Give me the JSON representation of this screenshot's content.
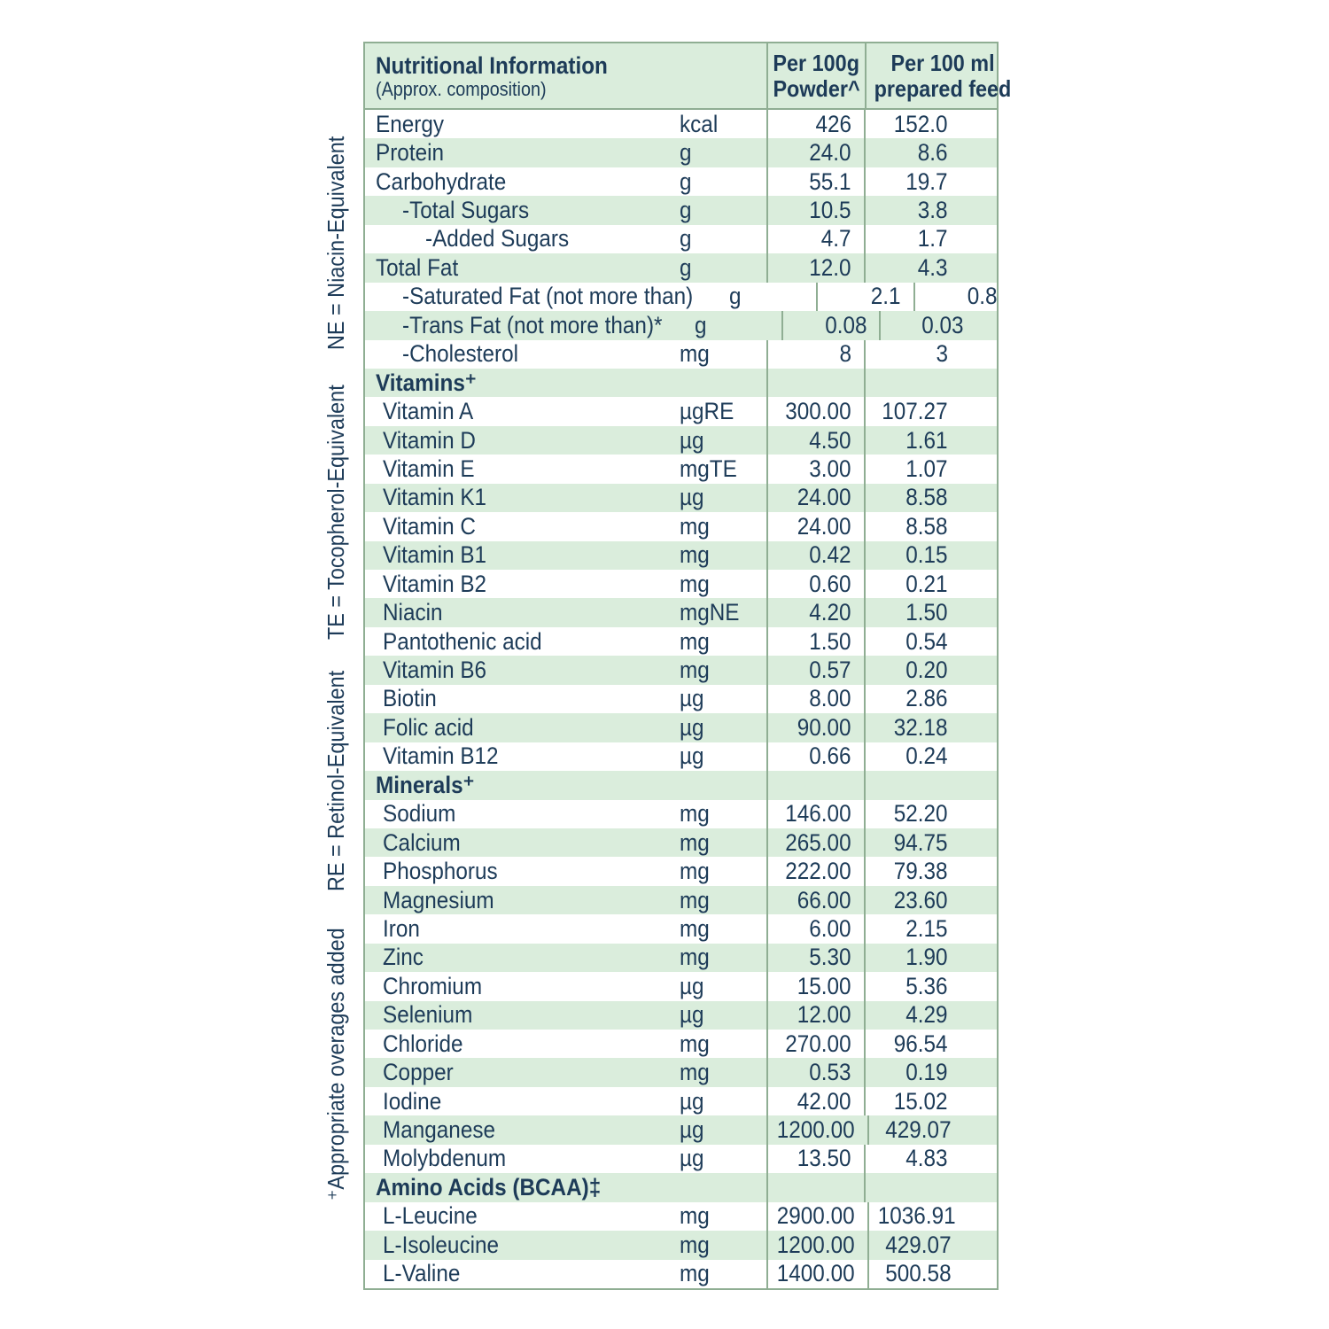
{
  "colors": {
    "text_navy": "#1d3b58",
    "row_green": "#daeddc",
    "border_green": "#8fae93",
    "background": "#ffffff"
  },
  "side_notes": {
    "items": [
      "⁺Appropriate overages added",
      "RE = Retinol-Equivalent",
      "TE = Tocopherol-Equivalent",
      "NE = Niacin-Equivalent"
    ]
  },
  "table": {
    "header": {
      "title": "Nutritional Information",
      "subtitle": "(Approx. composition)",
      "col_powder_line1": "Per 100g",
      "col_powder_line2": "Powder^",
      "col_feed_line1": "Per 100 ml",
      "col_feed_line2": "prepared feed"
    },
    "rows": [
      {
        "name": "Energy",
        "unit": "kcal",
        "per_100g": "426",
        "per_100ml": "152.0",
        "indent": 0
      },
      {
        "name": "Protein",
        "unit": "g",
        "per_100g": "24.0",
        "per_100ml": "8.6",
        "indent": 0
      },
      {
        "name": "Carbohydrate",
        "unit": "g",
        "per_100g": "55.1",
        "per_100ml": "19.7",
        "indent": 0
      },
      {
        "name": "-Total Sugars",
        "unit": "g",
        "per_100g": "10.5",
        "per_100ml": "3.8",
        "indent": 2
      },
      {
        "name": "-Added Sugars",
        "unit": "g",
        "per_100g": "4.7",
        "per_100ml": "1.7",
        "indent": 3
      },
      {
        "name": "Total Fat",
        "unit": "g",
        "per_100g": "12.0",
        "per_100ml": "4.3",
        "indent": 0
      },
      {
        "name": "-Saturated Fat (not more than)",
        "unit": "g",
        "per_100g": "2.1",
        "per_100ml": "0.8",
        "indent": 2
      },
      {
        "name": "-Trans Fat (not more than)*",
        "unit": "g",
        "per_100g": "0.08",
        "per_100ml": "0.03",
        "indent": 2
      },
      {
        "name": "-Cholesterol",
        "unit": "mg",
        "per_100g": "8",
        "per_100ml": "3",
        "indent": 2
      },
      {
        "section": true,
        "name": "Vitamins⁺",
        "unit": "",
        "per_100g": "",
        "per_100ml": "",
        "indent": 0
      },
      {
        "name": "Vitamin A",
        "unit": "µgRE",
        "per_100g": "300.00",
        "per_100ml": "107.27",
        "indent": 1
      },
      {
        "name": "Vitamin D",
        "unit": "µg",
        "per_100g": "4.50",
        "per_100ml": "1.61",
        "indent": 1
      },
      {
        "name": "Vitamin E",
        "unit": "mgTE",
        "per_100g": "3.00",
        "per_100ml": "1.07",
        "indent": 1
      },
      {
        "name": "Vitamin K1",
        "unit": "µg",
        "per_100g": "24.00",
        "per_100ml": "8.58",
        "indent": 1
      },
      {
        "name": "Vitamin C",
        "unit": "mg",
        "per_100g": "24.00",
        "per_100ml": "8.58",
        "indent": 1
      },
      {
        "name": "Vitamin B1",
        "unit": "mg",
        "per_100g": "0.42",
        "per_100ml": "0.15",
        "indent": 1
      },
      {
        "name": "Vitamin B2",
        "unit": "mg",
        "per_100g": "0.60",
        "per_100ml": "0.21",
        "indent": 1
      },
      {
        "name": "Niacin",
        "unit": "mgNE",
        "per_100g": "4.20",
        "per_100ml": "1.50",
        "indent": 1
      },
      {
        "name": "Pantothenic acid",
        "unit": "mg",
        "per_100g": "1.50",
        "per_100ml": "0.54",
        "indent": 1
      },
      {
        "name": "Vitamin B6",
        "unit": "mg",
        "per_100g": "0.57",
        "per_100ml": "0.20",
        "indent": 1
      },
      {
        "name": "Biotin",
        "unit": "µg",
        "per_100g": "8.00",
        "per_100ml": "2.86",
        "indent": 1
      },
      {
        "name": "Folic acid",
        "unit": "µg",
        "per_100g": "90.00",
        "per_100ml": "32.18",
        "indent": 1
      },
      {
        "name": "Vitamin B12",
        "unit": "µg",
        "per_100g": "0.66",
        "per_100ml": "0.24",
        "indent": 1
      },
      {
        "section": true,
        "name": "Minerals⁺",
        "unit": "",
        "per_100g": "",
        "per_100ml": "",
        "indent": 0
      },
      {
        "name": "Sodium",
        "unit": "mg",
        "per_100g": "146.00",
        "per_100ml": "52.20",
        "indent": 1
      },
      {
        "name": "Calcium",
        "unit": "mg",
        "per_100g": "265.00",
        "per_100ml": "94.75",
        "indent": 1
      },
      {
        "name": "Phosphorus",
        "unit": "mg",
        "per_100g": "222.00",
        "per_100ml": "79.38",
        "indent": 1
      },
      {
        "name": "Magnesium",
        "unit": "mg",
        "per_100g": "66.00",
        "per_100ml": "23.60",
        "indent": 1
      },
      {
        "name": "Iron",
        "unit": "mg",
        "per_100g": "6.00",
        "per_100ml": "2.15",
        "indent": 1
      },
      {
        "name": "Zinc",
        "unit": "mg",
        "per_100g": "5.30",
        "per_100ml": "1.90",
        "indent": 1
      },
      {
        "name": "Chromium",
        "unit": "µg",
        "per_100g": "15.00",
        "per_100ml": "5.36",
        "indent": 1
      },
      {
        "name": "Selenium",
        "unit": "µg",
        "per_100g": "12.00",
        "per_100ml": "4.29",
        "indent": 1
      },
      {
        "name": "Chloride",
        "unit": "mg",
        "per_100g": "270.00",
        "per_100ml": "96.54",
        "indent": 1
      },
      {
        "name": "Copper",
        "unit": "mg",
        "per_100g": "0.53",
        "per_100ml": "0.19",
        "indent": 1
      },
      {
        "name": "Iodine",
        "unit": "µg",
        "per_100g": "42.00",
        "per_100ml": "15.02",
        "indent": 1
      },
      {
        "name": "Manganese",
        "unit": "µg",
        "per_100g": "1200.00",
        "per_100ml": "429.07",
        "indent": 1
      },
      {
        "name": "Molybdenum",
        "unit": "µg",
        "per_100g": "13.50",
        "per_100ml": "4.83",
        "indent": 1
      },
      {
        "section": true,
        "name": "Amino Acids (BCAA)‡",
        "unit": "",
        "per_100g": "",
        "per_100ml": "",
        "indent": 0
      },
      {
        "name": "L-Leucine",
        "unit": "mg",
        "per_100g": "2900.00",
        "per_100ml": "1036.91",
        "indent": 1
      },
      {
        "name": "L-Isoleucine",
        "unit": "mg",
        "per_100g": "1200.00",
        "per_100ml": "429.07",
        "indent": 1
      },
      {
        "name": "L-Valine",
        "unit": "mg",
        "per_100g": "1400.00",
        "per_100ml": "500.58",
        "indent": 1
      }
    ]
  }
}
